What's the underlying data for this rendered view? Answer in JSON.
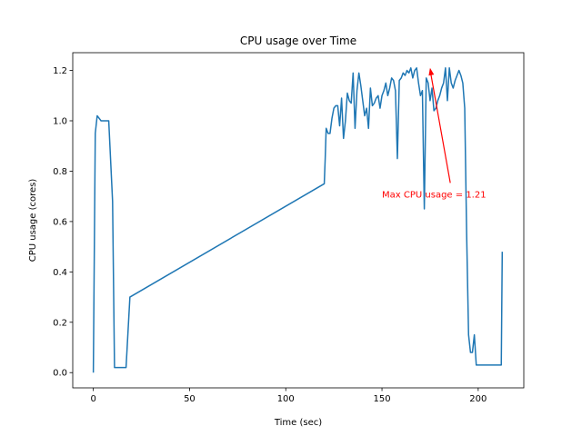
{
  "chart_data": {
    "type": "line",
    "title": "CPU usage over Time",
    "xlabel": "Time (sec)",
    "ylabel": "CPU usage (cores)",
    "xlim": [
      -10.7,
      223.7
    ],
    "ylim": [
      -0.0605,
      1.2705
    ],
    "xticks": [
      0,
      50,
      100,
      150,
      200
    ],
    "yticks": [
      0.0,
      0.2,
      0.4,
      0.6,
      0.8,
      1.0,
      1.2
    ],
    "xtick_labels": [
      "0",
      "50",
      "100",
      "150",
      "200"
    ],
    "ytick_labels": [
      "0.0",
      "0.2",
      "0.4",
      "0.6",
      "0.8",
      "1.0",
      "1.2"
    ],
    "grid": false,
    "series_color": "#1f77b4",
    "annotation_color": "#ff0000",
    "series": [
      {
        "x": [
          0,
          1,
          2,
          3,
          4,
          6,
          8,
          10,
          11,
          13,
          15,
          17,
          19,
          120,
          120.5,
          121,
          122,
          123,
          124,
          125,
          126,
          127,
          128,
          129,
          130,
          131,
          132,
          133,
          134,
          135,
          136,
          137,
          138,
          139,
          140,
          141,
          142,
          143,
          144,
          145,
          146,
          147,
          148,
          149,
          150,
          151,
          152,
          153,
          154,
          155,
          156,
          157,
          158,
          159,
          160,
          161,
          162,
          163,
          164,
          165,
          166,
          167,
          168,
          169,
          170,
          171,
          172,
          173,
          174,
          175,
          176,
          177,
          178,
          179,
          180,
          181,
          182,
          183,
          184,
          185,
          186,
          187,
          188,
          189,
          190,
          191,
          192,
          193,
          194,
          195,
          196,
          197,
          198,
          199,
          200,
          201,
          202,
          203,
          204,
          205,
          206,
          207,
          208,
          209,
          210,
          211,
          212,
          212.5
        ],
        "y": [
          0.0,
          0.95,
          1.02,
          1.01,
          1.0,
          1.0,
          1.0,
          0.68,
          0.02,
          0.02,
          0.02,
          0.02,
          0.3,
          0.75,
          0.85,
          0.97,
          0.95,
          0.95,
          1.01,
          1.05,
          1.06,
          1.06,
          0.98,
          1.09,
          0.93,
          1.0,
          1.11,
          1.08,
          1.07,
          1.19,
          0.97,
          1.12,
          1.19,
          1.14,
          1.08,
          1.02,
          1.05,
          0.97,
          1.13,
          1.06,
          1.07,
          1.09,
          1.1,
          1.05,
          1.1,
          1.12,
          1.15,
          1.1,
          1.13,
          1.17,
          1.16,
          1.12,
          0.85,
          1.16,
          1.17,
          1.19,
          1.18,
          1.2,
          1.19,
          1.21,
          1.17,
          1.2,
          1.21,
          1.15,
          1.1,
          1.12,
          0.65,
          1.17,
          1.15,
          1.08,
          1.13,
          1.04,
          1.05,
          1.08,
          1.1,
          1.13,
          1.15,
          1.21,
          1.08,
          1.21,
          1.15,
          1.13,
          1.16,
          1.18,
          1.2,
          1.18,
          1.15,
          1.05,
          0.55,
          0.15,
          0.08,
          0.08,
          0.15,
          0.03,
          0.03,
          0.03,
          0.03,
          0.03,
          0.03,
          0.03,
          0.03,
          0.03,
          0.03,
          0.03,
          0.03,
          0.03,
          0.03,
          0.48
        ]
      }
    ],
    "annotation": {
      "text": "Max CPU usage = 1.21",
      "xy": [
        175,
        1.21
      ],
      "xytext": [
        150,
        0.71
      ]
    }
  }
}
